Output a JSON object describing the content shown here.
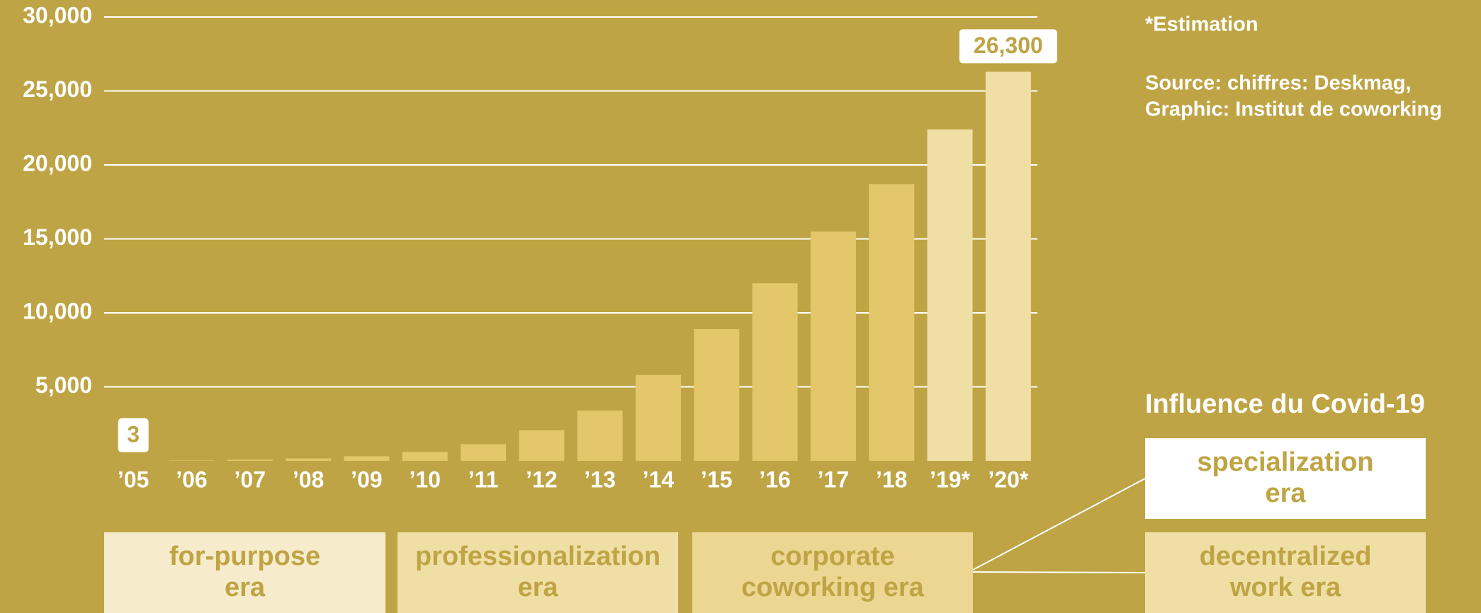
{
  "chart_data": {
    "type": "bar",
    "categories": [
      "’05",
      "’06",
      "’07",
      "’08",
      "’09",
      "’10",
      "’11",
      "’12",
      "’13",
      "’14",
      "’15",
      "’16",
      "’17",
      "’18",
      "’19*",
      "’20*"
    ],
    "values": [
      3,
      30,
      75,
      160,
      310,
      600,
      1130,
      2070,
      3400,
      5800,
      8900,
      12000,
      15500,
      18700,
      22400,
      26300
    ],
    "value_labels": [
      "3",
      null,
      null,
      null,
      null,
      null,
      null,
      null,
      null,
      null,
      null,
      null,
      null,
      null,
      null,
      "26,300"
    ],
    "colors": [
      "#e3c76a",
      "#e3c76a",
      "#e3c76a",
      "#e3c76a",
      "#e3c76a",
      "#e3c76a",
      "#e3c76a",
      "#e3c76a",
      "#e3c76a",
      "#e3c76a",
      "#e3c76a",
      "#e3c76a",
      "#e3c76a",
      "#e3c76a",
      "#f0dfa5",
      "#f0dfa5"
    ],
    "ylim": [
      0,
      30000
    ],
    "yticks": [
      {
        "value": 5000,
        "label": "5,000"
      },
      {
        "value": 10000,
        "label": "10,000"
      },
      {
        "value": 15000,
        "label": "15,000"
      },
      {
        "value": 20000,
        "label": "20,000"
      },
      {
        "value": 25000,
        "label": "25,000"
      },
      {
        "value": 30000,
        "label": "30,000"
      }
    ],
    "grid": true
  },
  "notes": [
    "*Estimation",
    "Source: chiffres: Deskmag,",
    "Graphic: Institut de coworking"
  ],
  "covid_title": "Influence du Covid-19",
  "eras": [
    {
      "lines": [
        "for-purpose",
        "era"
      ],
      "color": "#f6ebcb"
    },
    {
      "lines": [
        "professionalization",
        "era"
      ],
      "color": "#f0dfa5"
    },
    {
      "lines": [
        "corporate",
        "coworking era"
      ],
      "color": "#ecd692"
    },
    {
      "lines": [
        "specialization",
        "era"
      ],
      "color": "#ffffff"
    },
    {
      "lines": [
        "decentralized",
        "work era"
      ],
      "color": "#f0dfa5"
    }
  ]
}
